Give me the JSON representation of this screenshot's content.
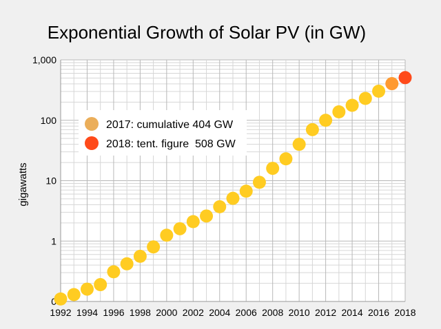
{
  "chart_data": {
    "type": "scatter",
    "title": "Exponential Growth of Solar PV (in GW)",
    "xlabel": "",
    "ylabel": "gigawatts",
    "y_scale": "log",
    "ylim": [
      0.1,
      1000
    ],
    "xlim": [
      1992,
      2018
    ],
    "grid": true,
    "legend_position": "upper-left",
    "y_ticks": [
      {
        "value": 0.1,
        "label": "0"
      },
      {
        "value": 1,
        "label": "1"
      },
      {
        "value": 10,
        "label": "10"
      },
      {
        "value": 100,
        "label": "100"
      },
      {
        "value": 1000,
        "label": "1,000"
      }
    ],
    "x_ticks": [
      {
        "value": 1992,
        "label": "1992"
      },
      {
        "value": 1994,
        "label": "1994"
      },
      {
        "value": 1996,
        "label": "1996"
      },
      {
        "value": 1998,
        "label": "1998"
      },
      {
        "value": 2000,
        "label": "2000"
      },
      {
        "value": 2002,
        "label": "2002"
      },
      {
        "value": 2004,
        "label": "2004"
      },
      {
        "value": 2006,
        "label": "2006"
      },
      {
        "value": 2008,
        "label": "2008"
      },
      {
        "value": 2010,
        "label": "2010"
      },
      {
        "value": 2012,
        "label": "2012"
      },
      {
        "value": 2014,
        "label": "2014"
      },
      {
        "value": 2016,
        "label": "2016"
      },
      {
        "value": 2018,
        "label": "2018"
      }
    ],
    "series": [
      {
        "color": "#ffcc22",
        "x": [
          1992,
          1993,
          1994,
          1995,
          1996,
          1997,
          1998,
          1999,
          2000,
          2001,
          2002,
          2003,
          2004,
          2005,
          2006,
          2007,
          2008,
          2009,
          2010,
          2011,
          2012,
          2013,
          2014,
          2015,
          2016
        ],
        "y": [
          0.11,
          0.13,
          0.16,
          0.19,
          0.31,
          0.42,
          0.56,
          0.8,
          1.25,
          1.6,
          2.1,
          2.6,
          3.7,
          5.1,
          6.7,
          9.4,
          16,
          23,
          40,
          70,
          100,
          138,
          177,
          230,
          303
        ]
      },
      {
        "color": "#ff9a30",
        "x": [
          2017
        ],
        "y": [
          404
        ]
      },
      {
        "color": "#ff4a1a",
        "x": [
          2018
        ],
        "y": [
          508
        ]
      }
    ],
    "legend": [
      {
        "label": "2017: cumulative 404 GW",
        "color": "#ebae5a"
      },
      {
        "label": "2018: tent. figure  508 GW",
        "color": "#ff4a1a"
      }
    ]
  }
}
